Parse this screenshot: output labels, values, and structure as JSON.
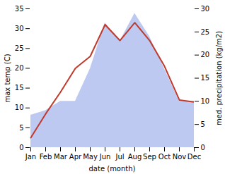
{
  "chart_data": {
    "type": "line",
    "categories": [
      "Jan",
      "Feb",
      "Mar",
      "Apr",
      "May",
      "Jun",
      "Jul",
      "Aug",
      "Sep",
      "Oct",
      "Nov",
      "Dec"
    ],
    "xlabel": "date (month)",
    "ylabel": "max temp (C)",
    "y2label": "med. precipitation (kg/m2)",
    "series": [
      {
        "type": "area",
        "axis": "y2",
        "color": "#bdc9f0",
        "values": [
          7.0,
          8.0,
          10.0,
          10.0,
          17.0,
          27.0,
          23.0,
          29.0,
          24.0,
          17.0,
          10.0,
          10.0
        ]
      },
      {
        "type": "line",
        "color": "#c0392b",
        "values": [
          2.5,
          8.5,
          14.0,
          20.0,
          23.0,
          31.0,
          27.0,
          31.5,
          27.0,
          20.5,
          12.0,
          11.5
        ]
      }
    ],
    "ylim": [
      0,
      35
    ],
    "yticks": [
      0,
      5,
      10,
      15,
      20,
      25,
      30,
      35
    ],
    "y2lim": [
      0,
      30
    ],
    "y2ticks": [
      0,
      5,
      10,
      15,
      20,
      25,
      30
    ]
  }
}
